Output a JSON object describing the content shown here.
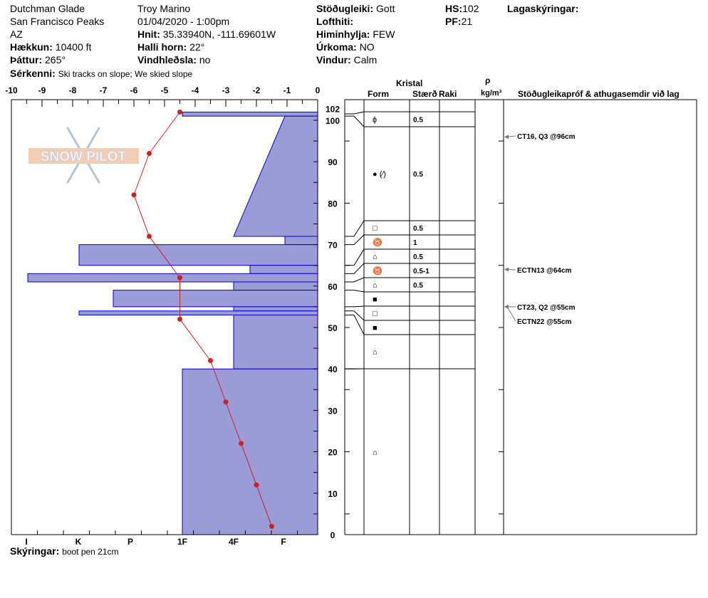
{
  "header": {
    "location": "Dutchman Glade",
    "range": "San Francisco Peaks",
    "state": "AZ",
    "elevation_label": "Hækkun:",
    "elevation": "10400 ft",
    "aspect_label": "Þáttur:",
    "aspect": "265°",
    "observer": "Troy Marino",
    "datetime": "01/04/2020 - 1:00pm",
    "coords_label": "Hnit:",
    "coords": "35.33940N, -111.69601W",
    "slope_label": "Halli horn:",
    "slope": "22°",
    "wind_loading_label": "Vindhleðsla:",
    "wind_loading": "no",
    "stability_label": "Stöðugleiki:",
    "stability": "Gott",
    "air_temp_label": "Lofthiti:",
    "air_temp": "",
    "sky_label": "Himinhylja:",
    "sky": "FEW",
    "precip_label": "Úrkoma:",
    "precip": "NO",
    "wind_label": "Vindur:",
    "wind": "Calm",
    "hs_label": "HS:",
    "hs": "102",
    "pf_label": "PF:",
    "pf": "21",
    "layer_notes_label": "Lagaskýringar:",
    "features_label": "Sérkenni:",
    "features": "Ski tracks on slope; We skied slope",
    "notes_label": "Skýringar:",
    "notes": "boot pen 21cm"
  },
  "table_headers": {
    "crystal": "Kristal",
    "form": "Form",
    "size": "Stærð",
    "moisture": "Raki",
    "rho": "ρ",
    "density_unit": "kg/m³",
    "tests": "Stöðugleikapróf & athugasemdir við lag"
  },
  "logo": "SNOW PILOT",
  "chart_data": {
    "type": "line",
    "temp_axis": {
      "range": [
        -10,
        0
      ],
      "ticks": [
        "-10",
        "-9",
        "-8",
        "-7",
        "-6",
        "-5",
        "-4",
        "-3",
        "-2",
        "-1",
        "0"
      ]
    },
    "height_axis": {
      "range": [
        0,
        102
      ],
      "ticks": [
        "0",
        "10",
        "20",
        "30",
        "40",
        "50",
        "60",
        "70",
        "80",
        "90",
        "100",
        "102"
      ]
    },
    "hardness_axis": {
      "ticks": [
        "I",
        "K",
        "P",
        "1F",
        "4F",
        "F"
      ]
    },
    "temperature_profile": [
      [
        102,
        -4.5
      ],
      [
        92,
        -5.5
      ],
      [
        82,
        -6
      ],
      [
        72,
        -5.5
      ],
      [
        62,
        -4.5
      ],
      [
        52,
        -4.5
      ],
      [
        42,
        -3.5
      ],
      [
        32,
        -3
      ],
      [
        22,
        -2.5
      ],
      [
        12,
        -2
      ],
      [
        2,
        -1.5
      ]
    ],
    "hardness_layers": [
      {
        "top": 102,
        "bottom": 101,
        "hardness": "1F"
      },
      {
        "top": 101,
        "bottom": 72,
        "hardness_top": "F",
        "hardness_bottom": "4F"
      },
      {
        "top": 72,
        "bottom": 70,
        "hardness": "F"
      },
      {
        "top": 70,
        "bottom": 65,
        "hardness": "K"
      },
      {
        "top": 65,
        "bottom": 63,
        "hardness": "4F+"
      },
      {
        "top": 63,
        "bottom": 61,
        "hardness": "I-"
      },
      {
        "top": 61,
        "bottom": 59,
        "hardness": "4F"
      },
      {
        "top": 59,
        "bottom": 55,
        "hardness": "P+"
      },
      {
        "top": 55,
        "bottom": 54,
        "hardness": "4F"
      },
      {
        "top": 54,
        "bottom": 53,
        "hardness": "K"
      },
      {
        "top": 53,
        "bottom": 40,
        "hardness": "4F"
      },
      {
        "top": 40,
        "bottom": 0,
        "hardness": "1F"
      }
    ],
    "colors": {
      "hardness_fill": "#9b9bd7",
      "hardness_edge": "#0000cc",
      "temperature": "#cc2222"
    }
  },
  "layers_table": [
    {
      "form": "ɸ",
      "size": "0.5"
    },
    {
      "form": "● (⁄)",
      "size": "0.5"
    },
    {
      "form": "□",
      "size": "0.5"
    },
    {
      "form": "♉",
      "size": "1"
    },
    {
      "form": "⌂",
      "size": "0.5"
    },
    {
      "form": "♉",
      "size": "0.5-1"
    },
    {
      "form": "⌂",
      "size": "0.5"
    },
    {
      "form": "■",
      "size": ""
    },
    {
      "form": "□",
      "size": ""
    },
    {
      "form": "■",
      "size": ""
    },
    {
      "form": "⌂",
      "size": ""
    },
    {
      "form": "⌂",
      "size": ""
    }
  ],
  "tests": [
    {
      "text": "CT16, Q3 @96cm"
    },
    {
      "text": "ECTN13 @64cm"
    },
    {
      "text": "CT23, Q2 @55cm"
    },
    {
      "text": "ECTN22 @55cm"
    }
  ]
}
